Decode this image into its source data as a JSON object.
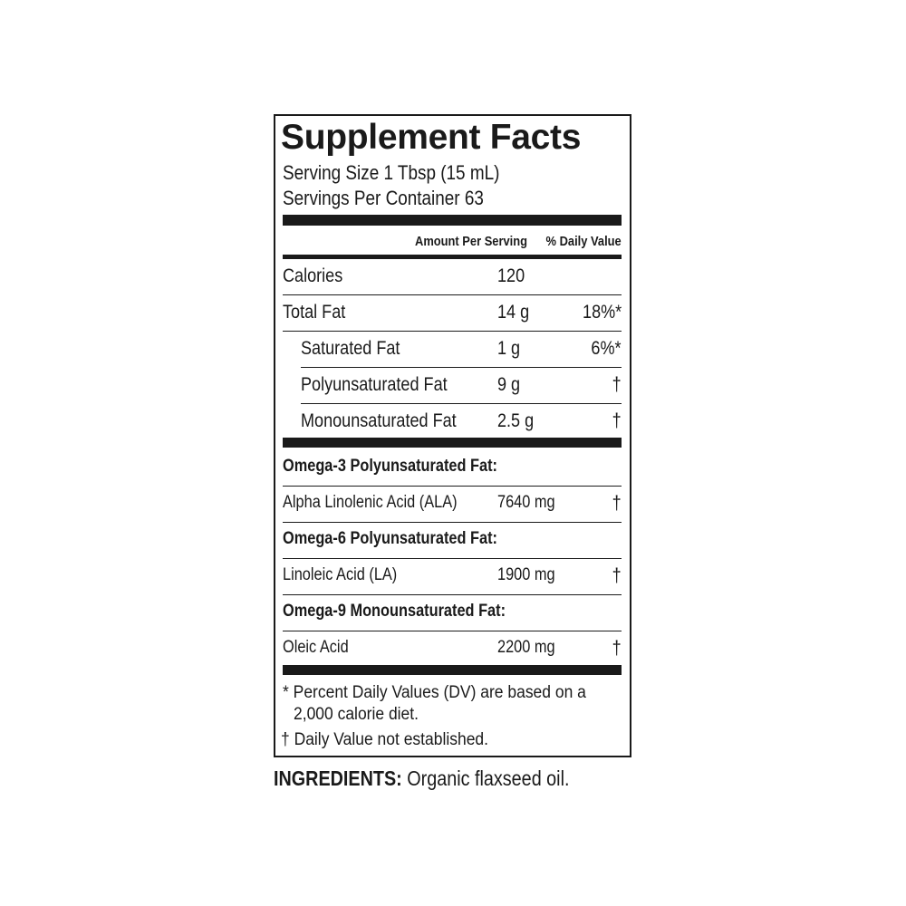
{
  "title": "Supplement Facts",
  "serving_size": "Serving Size 1 Tbsp (15 mL)",
  "servings_per_container": "Servings Per Container 63",
  "header": {
    "amount": "Amount Per Serving",
    "dv": "% Daily Value"
  },
  "rows": [
    {
      "name": "Calories",
      "amount": "120",
      "dv": ""
    },
    {
      "name": "Total Fat",
      "amount": "14 g",
      "dv": "18%*"
    },
    {
      "name": "Saturated Fat",
      "amount": "1 g",
      "dv": "6%*"
    },
    {
      "name": "Polyunsaturated Fat",
      "amount": "9 g",
      "dv": "†"
    },
    {
      "name": "Monounsaturated Fat",
      "amount": "2.5 g",
      "dv": "†"
    }
  ],
  "fatty_acids": [
    {
      "group": "Omega-3 Polyunsaturated Fat:",
      "name": "Alpha Linolenic Acid (ALA)",
      "amount": "7640 mg",
      "dv": "†"
    },
    {
      "group": "Omega-6 Polyunsaturated Fat:",
      "name": "Linoleic Acid (LA)",
      "amount": "1900 mg",
      "dv": "†"
    },
    {
      "group": "Omega-9 Monounsaturated Fat:",
      "name": "Oleic Acid",
      "amount": "2200 mg",
      "dv": "†"
    }
  ],
  "footnotes": {
    "dv_line1": "* Percent Daily Values (DV) are based on a",
    "dv_line2": "2,000 calorie diet.",
    "not_established": "† Daily Value not established."
  },
  "ingredients": {
    "label": "INGREDIENTS:",
    "text": " Organic flaxseed oil."
  }
}
